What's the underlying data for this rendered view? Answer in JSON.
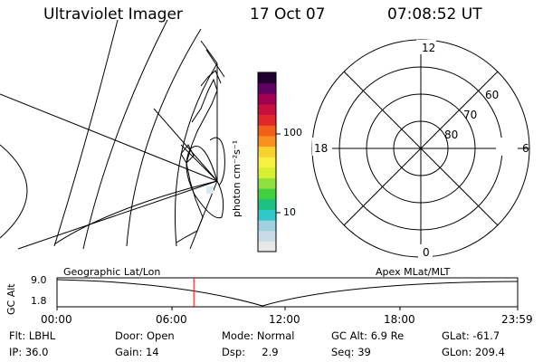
{
  "header": {
    "instrument": "Ultraviolet Imager",
    "date": "17 Oct 07",
    "time": "07:08:52 UT"
  },
  "colorbar": {
    "unit_label": "photon cm⁻²s⁻¹",
    "ticks": [
      "100",
      "10"
    ],
    "colors": [
      "#e8e8e8",
      "#c8dce8",
      "#9fd0e0",
      "#30c8c8",
      "#20c080",
      "#40d040",
      "#90e040",
      "#d8f030",
      "#f8f040",
      "#f8d030",
      "#f89020",
      "#f06018",
      "#e02828",
      "#c81040",
      "#a00050",
      "#600060",
      "#200030"
    ]
  },
  "left_map": {
    "coord_label": "Geographic Lat/Lon"
  },
  "polar_plot": {
    "coord_label": "Apex MLat/MLT",
    "mlt_labels": [
      "12",
      "18",
      "6",
      "0"
    ],
    "lat_labels": [
      "60",
      "70",
      "80"
    ]
  },
  "timeline": {
    "y_label": "GC Alt",
    "y_ticks": [
      "9.0",
      "1.8"
    ],
    "x_ticks": [
      "00:00",
      "06:00",
      "12:00",
      "18:00",
      "23:59"
    ],
    "current_fraction": 0.297,
    "marker_color": "#ff0000"
  },
  "status": {
    "row1": [
      {
        "label": "Flt: LBHL"
      },
      {
        "label": "Door: Open"
      },
      {
        "label": "Mode: Normal"
      },
      {
        "label": "GC Alt: 6.9 Re"
      },
      {
        "label": "GLat: -61.7"
      }
    ],
    "row2": [
      {
        "label": "IP: 36.0"
      },
      {
        "label": "Gain: 14"
      },
      {
        "label": "Dsp:     2.9"
      },
      {
        "label": "Seq: 39"
      },
      {
        "label": "GLon: 209.4"
      }
    ]
  }
}
